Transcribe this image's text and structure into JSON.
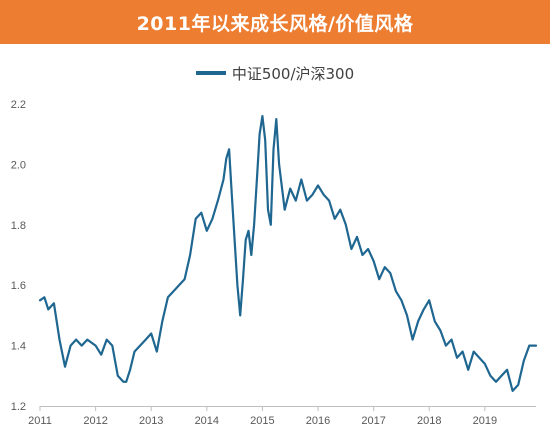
{
  "header": {
    "title": "2011年以来成长风格/价值风格"
  },
  "colors": {
    "banner": "#ED7D31",
    "series": "#1F6791",
    "axis": "#BFBFBF"
  },
  "chart_data": {
    "type": "line",
    "title": "2011年以来成长风格/价值风格",
    "legend": "top",
    "grid": false,
    "xlim": [
      2011.0,
      2019.92
    ],
    "ylim": [
      1.2,
      2.2
    ],
    "x_ticks": [
      "2011",
      "2012",
      "2013",
      "2014",
      "2015",
      "2016",
      "2017",
      "2018",
      "2019"
    ],
    "y_ticks": [
      "1.2",
      "1.4",
      "1.6",
      "1.8",
      "2.0",
      "2.2"
    ],
    "series": [
      {
        "name": "中证500/沪深300",
        "x": [
          2011.0,
          2011.08,
          2011.15,
          2011.25,
          2011.35,
          2011.45,
          2011.55,
          2011.65,
          2011.75,
          2011.85,
          2012.0,
          2012.1,
          2012.2,
          2012.3,
          2012.4,
          2012.5,
          2012.55,
          2012.62,
          2012.7,
          2012.8,
          2012.9,
          2013.0,
          2013.1,
          2013.2,
          2013.3,
          2013.4,
          2013.5,
          2013.6,
          2013.7,
          2013.8,
          2013.9,
          2014.0,
          2014.1,
          2014.2,
          2014.3,
          2014.35,
          2014.4,
          2014.45,
          2014.5,
          2014.55,
          2014.6,
          2014.65,
          2014.7,
          2014.75,
          2014.8,
          2014.85,
          2014.9,
          2014.95,
          2015.0,
          2015.05,
          2015.1,
          2015.15,
          2015.2,
          2015.25,
          2015.3,
          2015.4,
          2015.5,
          2015.6,
          2015.7,
          2015.8,
          2015.9,
          2016.0,
          2016.1,
          2016.2,
          2016.3,
          2016.4,
          2016.5,
          2016.6,
          2016.7,
          2016.8,
          2016.9,
          2017.0,
          2017.1,
          2017.2,
          2017.3,
          2017.4,
          2017.5,
          2017.6,
          2017.7,
          2017.8,
          2017.9,
          2018.0,
          2018.1,
          2018.2,
          2018.3,
          2018.4,
          2018.5,
          2018.6,
          2018.7,
          2018.8,
          2018.9,
          2019.0,
          2019.1,
          2019.2,
          2019.3,
          2019.4,
          2019.5,
          2019.6,
          2019.7,
          2019.8,
          2019.92
        ],
        "values": [
          1.55,
          1.56,
          1.52,
          1.54,
          1.42,
          1.33,
          1.4,
          1.42,
          1.4,
          1.42,
          1.4,
          1.37,
          1.42,
          1.4,
          1.3,
          1.28,
          1.28,
          1.32,
          1.38,
          1.4,
          1.42,
          1.44,
          1.38,
          1.48,
          1.56,
          1.58,
          1.6,
          1.62,
          1.7,
          1.82,
          1.84,
          1.78,
          1.82,
          1.88,
          1.95,
          2.02,
          2.05,
          1.9,
          1.75,
          1.6,
          1.5,
          1.62,
          1.75,
          1.78,
          1.7,
          1.8,
          1.95,
          2.1,
          2.16,
          2.08,
          1.85,
          1.8,
          2.05,
          2.15,
          2.0,
          1.85,
          1.92,
          1.88,
          1.95,
          1.88,
          1.9,
          1.93,
          1.9,
          1.88,
          1.82,
          1.85,
          1.8,
          1.72,
          1.76,
          1.7,
          1.72,
          1.68,
          1.62,
          1.66,
          1.64,
          1.58,
          1.55,
          1.5,
          1.42,
          1.48,
          1.52,
          1.55,
          1.48,
          1.45,
          1.4,
          1.42,
          1.36,
          1.38,
          1.32,
          1.38,
          1.36,
          1.34,
          1.3,
          1.28,
          1.3,
          1.32,
          1.25,
          1.27,
          1.35,
          1.4,
          1.4
        ]
      }
    ]
  }
}
